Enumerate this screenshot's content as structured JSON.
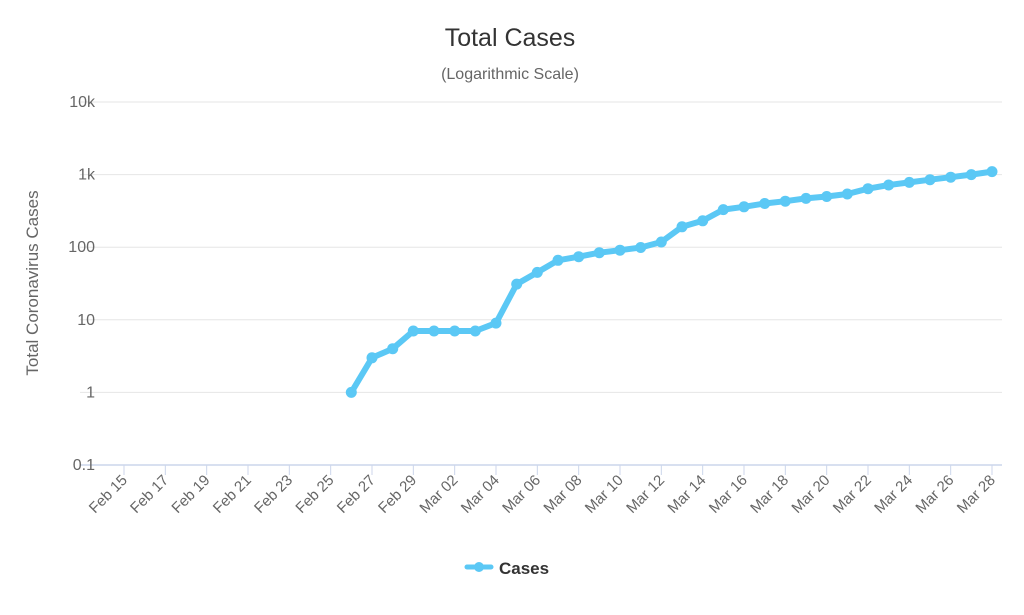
{
  "colors": {
    "series": "#5bc8f5",
    "grid": "#e6e6e6",
    "axis": "#ccd6eb",
    "text": "#666666",
    "title": "#333333"
  },
  "chart_data": {
    "type": "line",
    "title": "Total Cases",
    "subtitle": "(Logarithmic Scale)",
    "xlabel": "",
    "ylabel": "Total Coronavirus Cases",
    "yscale": "log",
    "ylim": [
      0.1,
      10000
    ],
    "yticks": [
      {
        "value": 0.1,
        "label": "0.1"
      },
      {
        "value": 1,
        "label": "1"
      },
      {
        "value": 10,
        "label": "10"
      },
      {
        "value": 100,
        "label": "100"
      },
      {
        "value": 1000,
        "label": "1k"
      },
      {
        "value": 10000,
        "label": "10k"
      }
    ],
    "xticks": [
      "Feb 15",
      "Feb 17",
      "Feb 19",
      "Feb 21",
      "Feb 23",
      "Feb 25",
      "Feb 27",
      "Feb 29",
      "Mar 02",
      "Mar 04",
      "Mar 06",
      "Mar 08",
      "Mar 10",
      "Mar 12",
      "Mar 14",
      "Mar 16",
      "Mar 18",
      "Mar 20",
      "Mar 22",
      "Mar 24",
      "Mar 26",
      "Mar 28"
    ],
    "x": [
      "Feb 26",
      "Feb 27",
      "Feb 28",
      "Feb 29",
      "Mar 01",
      "Mar 02",
      "Mar 03",
      "Mar 04",
      "Mar 05",
      "Mar 06",
      "Mar 07",
      "Mar 08",
      "Mar 09",
      "Mar 10",
      "Mar 11",
      "Mar 12",
      "Mar 13",
      "Mar 14",
      "Mar 15",
      "Mar 16",
      "Mar 17",
      "Mar 18",
      "Mar 19",
      "Mar 20",
      "Mar 21",
      "Mar 22",
      "Mar 23",
      "Mar 24",
      "Mar 25",
      "Mar 26",
      "Mar 27",
      "Mar 28"
    ],
    "series": [
      {
        "name": "Cases",
        "values": [
          1,
          3,
          4,
          7,
          7,
          7,
          7,
          9,
          31,
          45,
          66,
          74,
          84,
          91,
          99,
          118,
          191,
          231,
          330,
          360,
          400,
          430,
          470,
          500,
          540,
          640,
          720,
          780,
          850,
          920,
          1000,
          1100
        ]
      }
    ],
    "grid": true,
    "legend": "bottom-center"
  }
}
